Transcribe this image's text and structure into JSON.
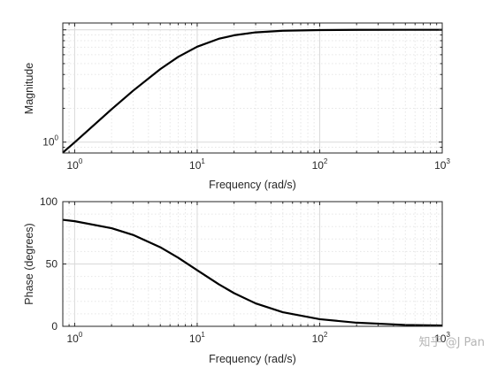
{
  "chart_data": [
    {
      "type": "line",
      "title": "",
      "xlabel": "Frequency (rad/s)",
      "ylabel": "Magnitude",
      "xscale": "log",
      "yscale": "log",
      "xlim": [
        0.8,
        1000
      ],
      "ylim": [
        0.8,
        11.5
      ],
      "x_ticks": [
        {
          "base": "10",
          "exp": "0"
        },
        {
          "base": "10",
          "exp": "1"
        },
        {
          "base": "10",
          "exp": "2"
        },
        {
          "base": "10",
          "exp": "3"
        }
      ],
      "y_ticks": [
        {
          "base": "10",
          "exp": "0"
        }
      ],
      "grid": true,
      "series": [
        {
          "values": [
            [
              0.8,
              0.806
            ],
            [
              1,
              0.995
            ],
            [
              2,
              1.96
            ],
            [
              3,
              2.87
            ],
            [
              5,
              4.47
            ],
            [
              7,
              5.74
            ],
            [
              10,
              7.07
            ],
            [
              15,
              8.32
            ],
            [
              20,
              8.94
            ],
            [
              30,
              9.49
            ],
            [
              50,
              9.81
            ],
            [
              100,
              9.95
            ],
            [
              200,
              9.99
            ],
            [
              500,
              10.0
            ],
            [
              1000,
              10.0
            ]
          ]
        }
      ]
    },
    {
      "type": "line",
      "title": "",
      "xlabel": "Frequency (rad/s)",
      "ylabel": "Phase (degrees)",
      "xscale": "log",
      "yscale": "linear",
      "xlim": [
        0.8,
        1000
      ],
      "ylim": [
        0,
        100
      ],
      "x_ticks": [
        {
          "base": "10",
          "exp": "0"
        },
        {
          "base": "10",
          "exp": "1"
        },
        {
          "base": "10",
          "exp": "2"
        },
        {
          "base": "10",
          "exp": "3"
        }
      ],
      "y_ticks": [
        "0",
        "50",
        "100"
      ],
      "grid": true,
      "series": [
        {
          "values": [
            [
              0.8,
              85.4
            ],
            [
              1,
              84.3
            ],
            [
              2,
              78.7
            ],
            [
              3,
              73.3
            ],
            [
              5,
              63.4
            ],
            [
              7,
              55.0
            ],
            [
              10,
              45.0
            ],
            [
              15,
              33.7
            ],
            [
              20,
              26.6
            ],
            [
              30,
              18.4
            ],
            [
              50,
              11.3
            ],
            [
              100,
              5.7
            ],
            [
              200,
              2.9
            ],
            [
              500,
              1.1
            ],
            [
              1000,
              0.6
            ]
          ]
        }
      ]
    }
  ],
  "watermark": {
    "text": "知乎 @J Pan"
  }
}
